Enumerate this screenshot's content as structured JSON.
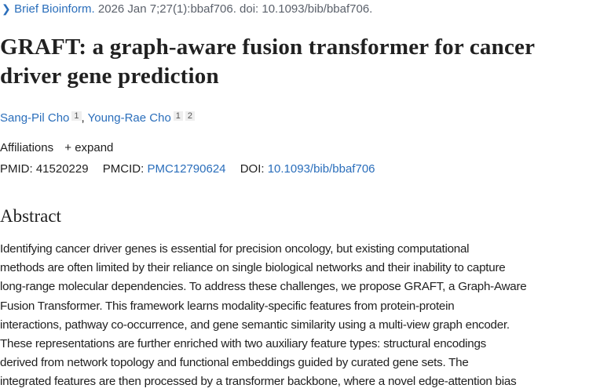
{
  "citation": {
    "chevron_icon": "chevron-right-icon",
    "journal": "Brief Bioinform.",
    "details": " 2026 Jan 7;27(1):bbaf706. doi: 10.1093/bib/bbaf706."
  },
  "title": "GRAFT: a graph-aware fusion transformer for cancer driver gene prediction",
  "authors": [
    {
      "name": "Sang-Pil Cho",
      "affiliations": [
        "1"
      ]
    },
    {
      "name": "Young-Rae Cho",
      "affiliations": [
        "1",
        "2"
      ]
    }
  ],
  "affiliations": {
    "label": "Affiliations",
    "expand_label": "+ expand"
  },
  "ids": {
    "pmid_label": "PMID:",
    "pmid": "41520229",
    "pmcid_label": "PMCID:",
    "pmcid": "PMC12790624",
    "doi_label": "DOI:",
    "doi": "10.1093/bib/bbaf706"
  },
  "abstract": {
    "heading": "Abstract",
    "lines": [
      "Identifying cancer driver genes is essential for precision oncology, but existing computational",
      "methods are often limited by their reliance on single biological networks and their inability to capture",
      "long-range molecular dependencies. To address these challenges, we propose GRAFT, a Graph-Aware",
      "Fusion Transformer. This framework learns modality-specific features from protein-protein",
      "interactions, pathway co-occurrence, and gene semantic similarity using a multi-view graph encoder.",
      "These representations are further enriched with two auxiliary feature types: structural encodings",
      "derived from network topology and functional embeddings guided by curated gene sets. The",
      "integrated features are then processed by a transformer backbone, where a novel edge-attention bias"
    ]
  },
  "colors": {
    "link": "#2a6ebb",
    "text": "#212121",
    "muted": "#5b616b"
  }
}
